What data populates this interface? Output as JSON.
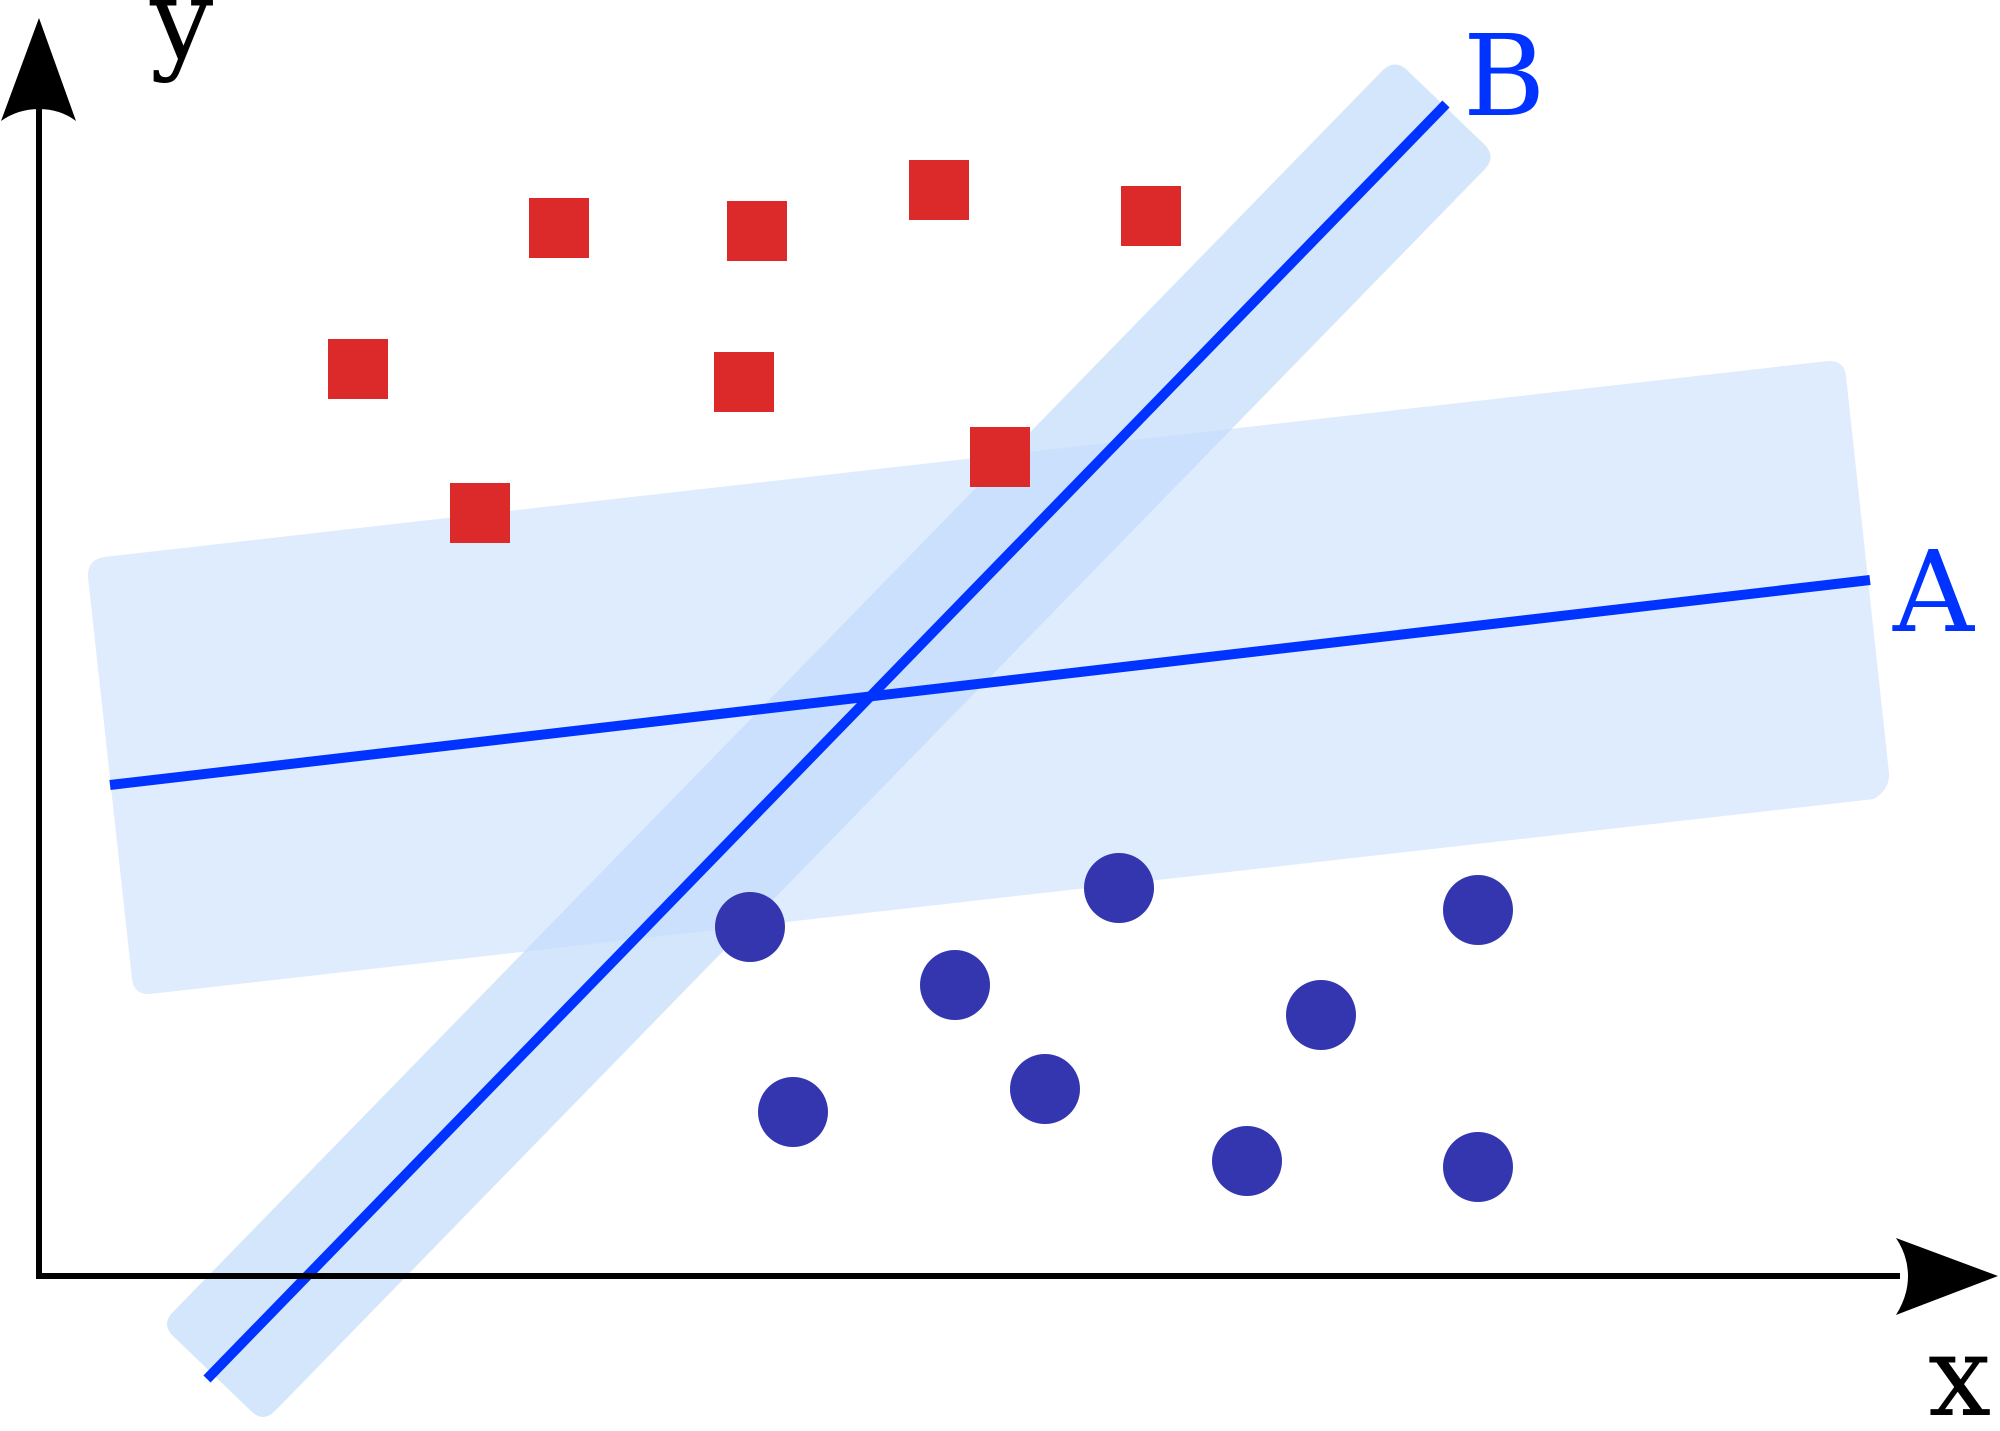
{
  "axes": {
    "x_label": "x",
    "y_label": "y",
    "color": "#000000"
  },
  "lines": {
    "a": {
      "label": "A",
      "color": "#0033ff",
      "margin_color": "#d4e6fc"
    },
    "b": {
      "label": "B",
      "color": "#0033ff",
      "margin_color": "#d4e6fc"
    }
  },
  "classes": {
    "squares": {
      "shape": "square",
      "color": "#dc2a2a",
      "count": 8
    },
    "circles": {
      "shape": "circle",
      "color": "#3336af",
      "count": 9
    }
  }
}
